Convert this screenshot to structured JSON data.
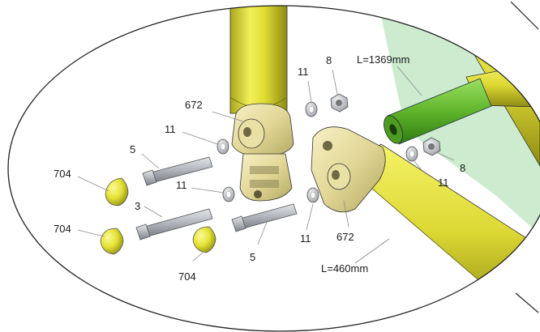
{
  "labels": {
    "dim_long_tube": "L=1369mm",
    "dim_short_tube": "L=460mm",
    "clamp_upper": "672",
    "clamp_lower": "672",
    "washer_upper_left": "11",
    "washer_top_center": "11",
    "washer_mid_left": "11",
    "washer_lower_center": "11",
    "washer_right": "11",
    "nut_top": "8",
    "nut_right": "8",
    "bolt_upper": "5",
    "bolt_lower": "5",
    "bolt_long": "3",
    "cap_top": "704",
    "cap_left": "704",
    "cap_bottom": "704"
  },
  "colors": {
    "tube_yellow": "#e6e23a",
    "tube_yellow_dark": "#9c9a17",
    "tube_green": "#5fb52b",
    "panel_green": "#bfe6c3",
    "bolt_gray": "#b9bcc2",
    "outline": "#222222"
  }
}
